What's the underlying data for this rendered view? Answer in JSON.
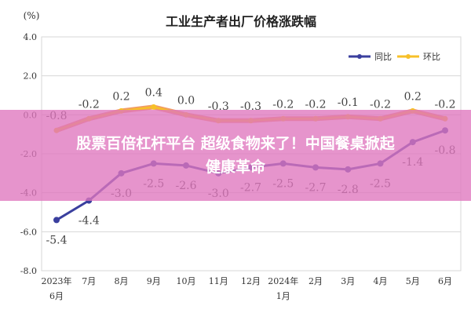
{
  "banner": {
    "line1": "股票百倍杠杆平台 超级食物来了！中国餐桌掀起",
    "line2": "健康革命"
  },
  "colors": {
    "yoy": "#3a3f9e",
    "mom": "#f7c028",
    "mom_band": "#ef8a4a",
    "axis": "#333333",
    "grid": "#d7d7d7",
    "overlay": "#df76be"
  },
  "chart_data": {
    "type": "line",
    "title": "工业生产者出厂价格涨跌幅",
    "unit_label": "(%)",
    "ylim": [
      -8.0,
      4.0
    ],
    "y_ticks": [
      {
        "value": 4.0,
        "label": "4.0"
      },
      {
        "value": 2.0,
        "label": "2.0"
      },
      {
        "value": 0.0,
        "label": "0.0"
      },
      {
        "value": -2.0,
        "label": "-2.0"
      },
      {
        "value": -4.0,
        "label": "-4.0"
      },
      {
        "value": -6.0,
        "label": "-6.0"
      },
      {
        "value": -8.0,
        "label": "-8.0"
      }
    ],
    "categories": [
      {
        "line1": "2023年",
        "line2": "6月"
      },
      {
        "line1": "7月",
        "line2": ""
      },
      {
        "line1": "8月",
        "line2": ""
      },
      {
        "line1": "9月",
        "line2": ""
      },
      {
        "line1": "10月",
        "line2": ""
      },
      {
        "line1": "11月",
        "line2": ""
      },
      {
        "line1": "12月",
        "line2": ""
      },
      {
        "line1": "2024年",
        "line2": "1月"
      },
      {
        "line1": "2月",
        "line2": ""
      },
      {
        "line1": "3月",
        "line2": ""
      },
      {
        "line1": "4月",
        "line2": ""
      },
      {
        "line1": "5月",
        "line2": ""
      },
      {
        "line1": "6月",
        "line2": ""
      }
    ],
    "grid": true,
    "legend_position": "top-right",
    "series": [
      {
        "name": "同比",
        "color": "#3a3f9e",
        "values": [
          -5.4,
          -4.4,
          -3.0,
          -2.5,
          -2.6,
          -3.0,
          -2.7,
          -2.5,
          -2.7,
          -2.8,
          -2.5,
          -1.4,
          -0.8
        ],
        "labels": [
          "-5.4",
          "-4.4",
          "-3.0",
          "-2.5",
          "-2.6",
          "-3.0",
          "-2.7",
          "-2.5",
          "-2.7",
          "-2.8",
          "-2.5",
          "-1.4",
          "-0.8"
        ],
        "label_placement": [
          "below",
          "below",
          "below",
          "below",
          "below",
          "below",
          "below",
          "below",
          "below",
          "below",
          "below",
          "below",
          "below"
        ]
      },
      {
        "name": "环比",
        "color": "#f7c028",
        "values": [
          -0.8,
          -0.2,
          0.2,
          0.4,
          0.0,
          -0.3,
          -0.3,
          -0.2,
          -0.2,
          -0.1,
          -0.2,
          0.2,
          -0.2
        ],
        "labels": [
          "-0.8",
          "-0.2",
          "0.2",
          "0.4",
          "0.0",
          "-0.3",
          "-0.3",
          "-0.2",
          "-0.2",
          "-0.1",
          "-0.2",
          "0.2",
          "-0.2"
        ],
        "label_placement": [
          "above",
          "above",
          "above",
          "above",
          "above",
          "above",
          "above",
          "above",
          "above",
          "above",
          "above",
          "above",
          "above"
        ]
      }
    ]
  }
}
